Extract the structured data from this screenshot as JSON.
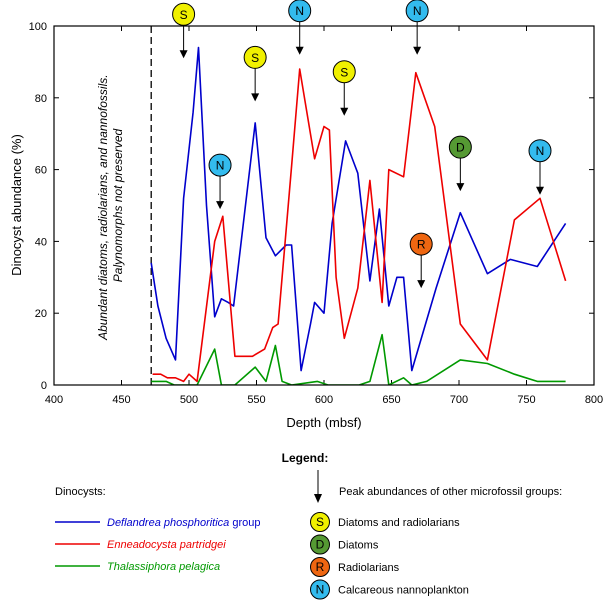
{
  "chart_data": {
    "type": "line",
    "xlabel": "Depth (mbsf)",
    "ylabel": "Dinocyst abundance (%)",
    "xlim": [
      400,
      800
    ],
    "ylim": [
      0,
      100
    ],
    "x_ticks": [
      "400",
      "450",
      "500",
      "550",
      "600",
      "650",
      "700",
      "750",
      "800"
    ],
    "y_ticks": [
      "0",
      "20",
      "40",
      "60",
      "80",
      "100"
    ],
    "grid": false,
    "boundary_x": 472,
    "annotation": [
      "Abundant diatoms, radiolarians, and nannofossils.",
      "Palynomorphs not preserved"
    ],
    "series": [
      {
        "name": "Deflandrea phosphoritica group",
        "color": "#0000cc",
        "points": [
          [
            472,
            34
          ],
          [
            477,
            22
          ],
          [
            483,
            13
          ],
          [
            490,
            7
          ],
          [
            496,
            52
          ],
          [
            503,
            76
          ],
          [
            507,
            94
          ],
          [
            513,
            50
          ],
          [
            519,
            19
          ],
          [
            524,
            24
          ],
          [
            529,
            23
          ],
          [
            533,
            22
          ],
          [
            549,
            73
          ],
          [
            557,
            41
          ],
          [
            564,
            36
          ],
          [
            572,
            39
          ],
          [
            576,
            39
          ],
          [
            583,
            4
          ],
          [
            590,
            17
          ],
          [
            593,
            23
          ],
          [
            600,
            20
          ],
          [
            606,
            45
          ],
          [
            616,
            68
          ],
          [
            622,
            62
          ],
          [
            625,
            59
          ],
          [
            634,
            29
          ],
          [
            641,
            49
          ],
          [
            648,
            22
          ],
          [
            654,
            30
          ],
          [
            659,
            30
          ],
          [
            665,
            4
          ],
          [
            683,
            27
          ],
          [
            701,
            48
          ],
          [
            721,
            31
          ],
          [
            738,
            35
          ],
          [
            758,
            33
          ],
          [
            779,
            45
          ]
        ]
      },
      {
        "name": "Enneadocysta partridgei",
        "color": "#ee0000",
        "points": [
          [
            473,
            3
          ],
          [
            479,
            3
          ],
          [
            484,
            2
          ],
          [
            490,
            2
          ],
          [
            496,
            1
          ],
          [
            500,
            3
          ],
          [
            506,
            1
          ],
          [
            519,
            40
          ],
          [
            525,
            47
          ],
          [
            534,
            8
          ],
          [
            547,
            8
          ],
          [
            556,
            10
          ],
          [
            562,
            16
          ],
          [
            566,
            17
          ],
          [
            569,
            30
          ],
          [
            576,
            61
          ],
          [
            582,
            88
          ],
          [
            593,
            63
          ],
          [
            600,
            72
          ],
          [
            604,
            71
          ],
          [
            609,
            30
          ],
          [
            615,
            13
          ],
          [
            625,
            27
          ],
          [
            634,
            57
          ],
          [
            643,
            23
          ],
          [
            648,
            60
          ],
          [
            659,
            58
          ],
          [
            668,
            87
          ],
          [
            682,
            72
          ],
          [
            701,
            17
          ],
          [
            721,
            7
          ],
          [
            741,
            46
          ],
          [
            760,
            52
          ],
          [
            779,
            29
          ]
        ]
      },
      {
        "name": "Thalassiphora pelagica",
        "color": "#009900",
        "points": [
          [
            472,
            1
          ],
          [
            483,
            1
          ],
          [
            489,
            0
          ],
          [
            495,
            0
          ],
          [
            506,
            0
          ],
          [
            519,
            10
          ],
          [
            524,
            0
          ],
          [
            534,
            0
          ],
          [
            549,
            5
          ],
          [
            557,
            1
          ],
          [
            564,
            11
          ],
          [
            569,
            1
          ],
          [
            576,
            0
          ],
          [
            595,
            1
          ],
          [
            603,
            0
          ],
          [
            616,
            0
          ],
          [
            626,
            0
          ],
          [
            634,
            1
          ],
          [
            643,
            14
          ],
          [
            648,
            0
          ],
          [
            659,
            2
          ],
          [
            665,
            0
          ],
          [
            676,
            1
          ],
          [
            701,
            7
          ],
          [
            721,
            6
          ],
          [
            741,
            3
          ],
          [
            758,
            1
          ],
          [
            779,
            1
          ]
        ]
      }
    ],
    "markers": [
      {
        "letter": "S",
        "x": 496,
        "y": 91
      },
      {
        "letter": "N",
        "x": 582,
        "y": 92
      },
      {
        "letter": "N",
        "x": 669,
        "y": 92
      },
      {
        "letter": "S",
        "x": 549,
        "y": 79
      },
      {
        "letter": "S",
        "x": 615,
        "y": 75
      },
      {
        "letter": "N",
        "x": 523,
        "y": 49
      },
      {
        "letter": "D",
        "x": 701,
        "y": 54
      },
      {
        "letter": "N",
        "x": 760,
        "y": 53
      },
      {
        "letter": "R",
        "x": 672,
        "y": 27
      }
    ],
    "marker_colors": {
      "S": "#f0f000",
      "N": "#33bbee",
      "D": "#559933",
      "R": "#ee6611"
    }
  },
  "legend": {
    "title": "Legend:",
    "dinocysts_label": "Dinocysts:",
    "series_labels": [
      "Deflandrea phosphoritica",
      "Enneadocysta partridgei",
      "Thalassiphora pelagica"
    ],
    "series_suffix": " group",
    "arrow_text": "Peak abundances of other microfossil groups:",
    "marker_items": [
      {
        "letter": "S",
        "label": "Diatoms and radiolarians"
      },
      {
        "letter": "D",
        "label": "Diatoms"
      },
      {
        "letter": "R",
        "label": "Radiolarians"
      },
      {
        "letter": "N",
        "label": "Calcareous nannoplankton"
      }
    ]
  }
}
